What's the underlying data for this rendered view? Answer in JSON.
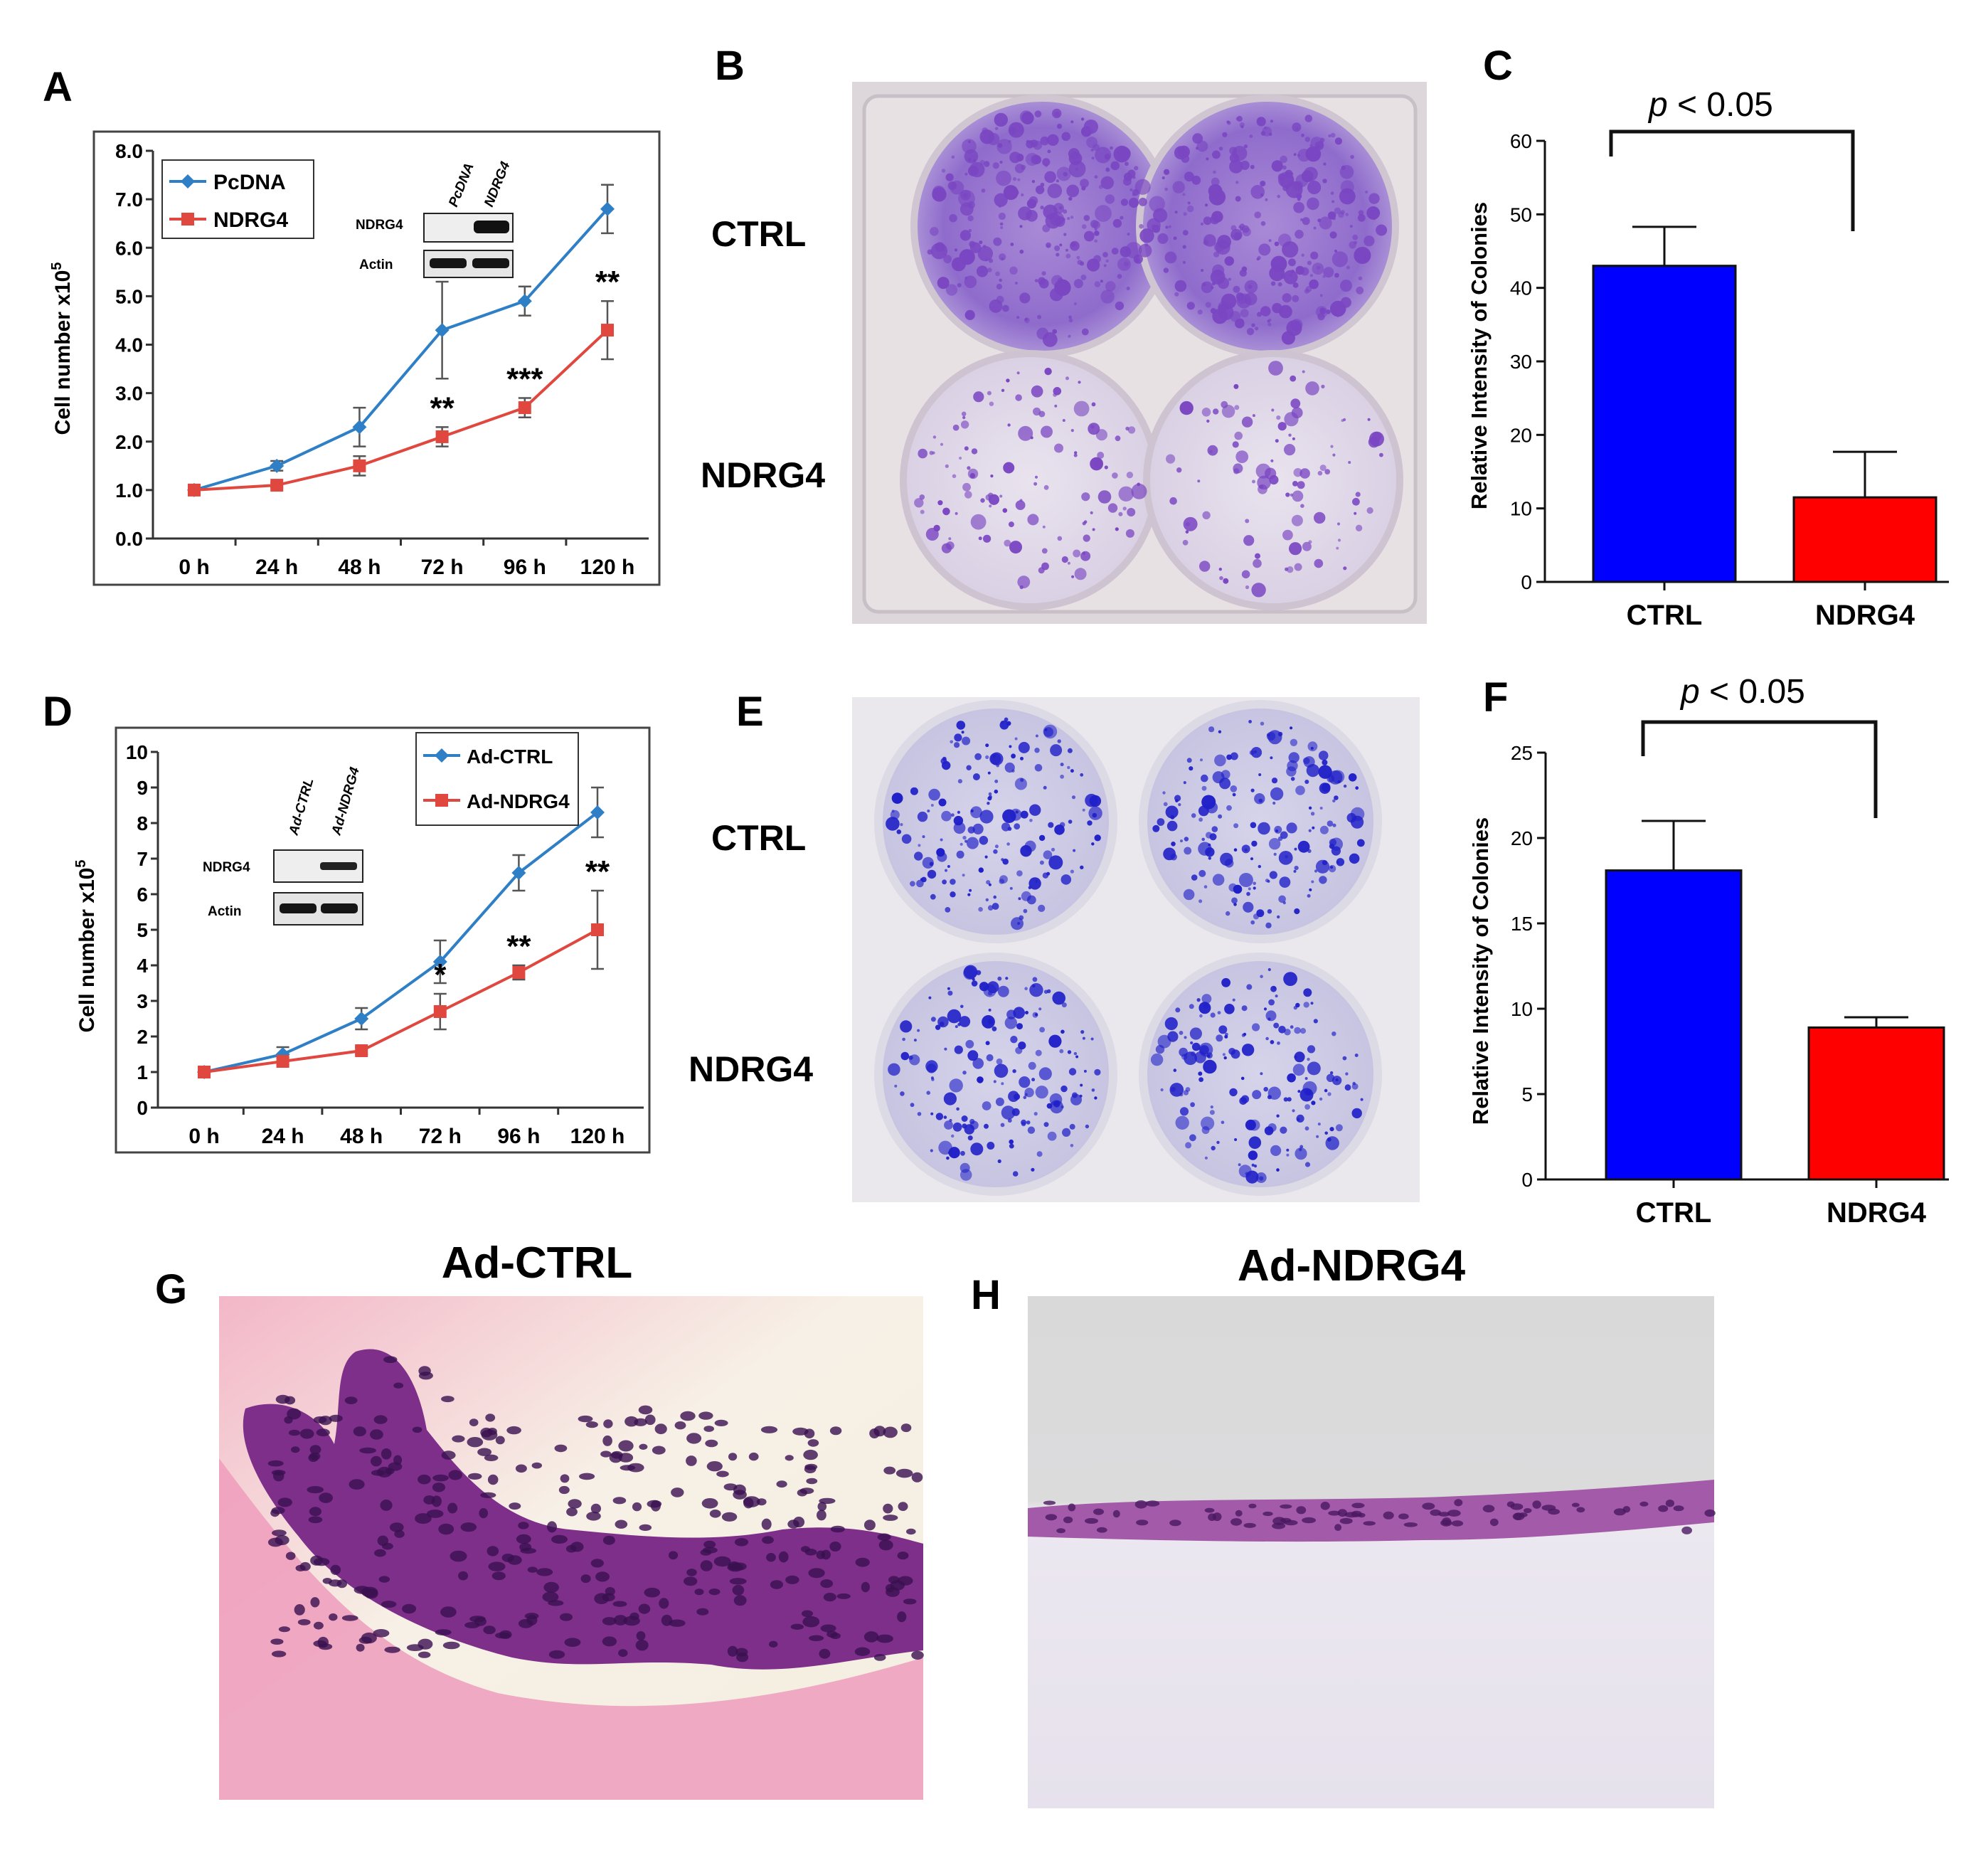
{
  "panel_letters": {
    "A": "A",
    "B": "B",
    "C": "C",
    "D": "D",
    "E": "E",
    "F": "F",
    "G": "G",
    "H": "H"
  },
  "colors": {
    "blue": "#2f7fc6",
    "red": "#e0483f",
    "bar_blue": "#0000ff",
    "bar_red": "#ff0000",
    "stain": "#6a3fb8"
  },
  "chart_data": [
    {
      "id": "A",
      "type": "line",
      "categories": [
        "0 h",
        "24 h",
        "48 h",
        "72 h",
        "96 h",
        "120 h"
      ],
      "ylabel": "Cell number x10",
      "ylabel_sup": "5",
      "ylim": [
        0,
        8
      ],
      "yticks": [
        "0.0",
        "1.0",
        "2.0",
        "3.0",
        "4.0",
        "5.0",
        "6.0",
        "7.0",
        "8.0"
      ],
      "series": [
        {
          "name": "PcDNA",
          "color": "#2f7fc6",
          "values": [
            1.0,
            1.5,
            2.3,
            4.3,
            4.9,
            6.8
          ],
          "errors": [
            0.05,
            0.1,
            0.4,
            1.0,
            0.3,
            0.5
          ]
        },
        {
          "name": "NDRG4",
          "color": "#e0483f",
          "values": [
            1.0,
            1.1,
            1.5,
            2.1,
            2.7,
            4.3
          ],
          "errors": [
            0.05,
            0.05,
            0.2,
            0.2,
            0.2,
            0.6
          ]
        }
      ],
      "annotations": [
        {
          "x": "72 h",
          "text": "**"
        },
        {
          "x": "96 h",
          "text": "***"
        },
        {
          "x": "120 h",
          "text": "**"
        }
      ],
      "inset": {
        "lanes": [
          "PcDNA",
          "NDRG4"
        ],
        "rows": [
          "NDRG4",
          "Actin"
        ]
      }
    },
    {
      "id": "C",
      "type": "bar",
      "categories": [
        "CTRL",
        "NDRG4"
      ],
      "values": [
        43,
        11.5
      ],
      "errors": [
        5.3,
        6.2
      ],
      "colors": [
        "#0000ff",
        "#ff0000"
      ],
      "ylabel": "Relative Intensity of Colonies",
      "ylim": [
        0,
        60
      ],
      "yticks": [
        "0",
        "10",
        "20",
        "30",
        "40",
        "50",
        "60"
      ],
      "significance": {
        "p_italic": "p",
        "text": " < 0.05"
      }
    },
    {
      "id": "D",
      "type": "line",
      "categories": [
        "0 h",
        "24 h",
        "48 h",
        "72 h",
        "96 h",
        "120 h"
      ],
      "ylabel": "Cell number x10",
      "ylabel_sup": "5",
      "ylim": [
        0,
        10
      ],
      "yticks": [
        "0",
        "1",
        "2",
        "3",
        "4",
        "5",
        "6",
        "7",
        "8",
        "9",
        "10"
      ],
      "series": [
        {
          "name": "Ad-CTRL",
          "color": "#2f7fc6",
          "values": [
            1.0,
            1.5,
            2.5,
            4.1,
            6.6,
            8.3
          ],
          "errors": [
            0.05,
            0.2,
            0.3,
            0.6,
            0.5,
            0.7
          ]
        },
        {
          "name": "Ad-NDRG4",
          "color": "#e0483f",
          "values": [
            1.0,
            1.3,
            1.6,
            2.7,
            3.8,
            5.0
          ],
          "errors": [
            0.05,
            0.1,
            0.1,
            0.5,
            0.2,
            1.1
          ]
        }
      ],
      "annotations": [
        {
          "x": "72 h",
          "text": "*"
        },
        {
          "x": "96 h",
          "text": "**"
        },
        {
          "x": "120 h",
          "text": "**"
        }
      ],
      "inset": {
        "lanes": [
          "Ad-CTRL",
          "Ad-NDRG4"
        ],
        "rows": [
          "NDRG4",
          "Actin"
        ]
      }
    },
    {
      "id": "F",
      "type": "bar",
      "categories": [
        "CTRL",
        "NDRG4"
      ],
      "values": [
        18.1,
        8.9
      ],
      "errors": [
        2.9,
        0.6
      ],
      "colors": [
        "#0000ff",
        "#ff0000"
      ],
      "ylabel": "Relative Intensity of Colonies",
      "ylim": [
        0,
        25
      ],
      "yticks": [
        "0",
        "5",
        "10",
        "15",
        "20",
        "25"
      ],
      "significance": {
        "p_italic": "p",
        "text": " < 0.05"
      }
    }
  ],
  "plates": {
    "B": {
      "row_labels": [
        "CTRL",
        "NDRG4"
      ]
    },
    "E": {
      "row_labels": [
        "CTRL",
        "NDRG4"
      ]
    }
  },
  "histology": {
    "G": {
      "title": "Ad-CTRL"
    },
    "H": {
      "title": "Ad-NDRG4"
    }
  }
}
